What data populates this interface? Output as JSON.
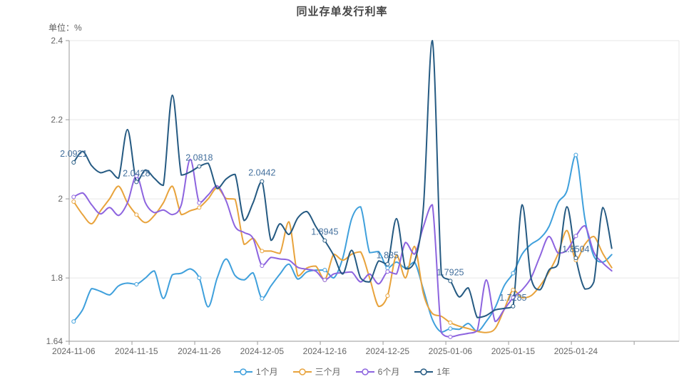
{
  "page": {
    "title": "同业存单发行利率",
    "unit_label": "单位：%"
  },
  "chart_data": {
    "type": "line",
    "title": "同业存单发行利率",
    "unit_label": "单位：%",
    "grid": true,
    "legend_position": "bottom",
    "smooth": true,
    "ylim": [
      1.64,
      2.4
    ],
    "y_ticks": [
      1.64,
      1.8,
      2.0,
      2.2,
      2.4
    ],
    "y_tick_labels": [
      "1.64",
      "1.8",
      "2",
      "2.2",
      "2.4"
    ],
    "x_labels": [
      "2024-11-06",
      "2024-11-15",
      "2024-11-26",
      "2024-12-05",
      "2024-12-16",
      "2024-12-25",
      "2025-01-06",
      "2025-01-15",
      "2025-01-24"
    ],
    "x_label_indices": [
      0,
      7,
      14,
      21,
      28,
      35,
      42,
      49,
      56
    ],
    "marker_indices": [
      0,
      7,
      14,
      21,
      28,
      35,
      42,
      49,
      56
    ],
    "n_points": 61,
    "n_categories": 68,
    "annotated_series": "1年",
    "annotation_labels": [
      "2.0921",
      "2.0428",
      "2.0818",
      "2.0442",
      "1.8945",
      "1.835",
      "1.7925",
      "1.7285",
      "1.8504"
    ],
    "annotation_color": "#44709D",
    "colors": {
      "axis": "#9a9a9a",
      "grid": "#e7e7e7",
      "tick_text": "#666666",
      "title_text": "#464646"
    },
    "series": [
      {
        "name": "1个月",
        "color": "#3FA0DC",
        "values": [
          1.69,
          1.72,
          1.773,
          1.766,
          1.757,
          1.78,
          1.787,
          1.784,
          1.8,
          1.818,
          1.748,
          1.808,
          1.812,
          1.823,
          1.8,
          1.727,
          1.8,
          1.848,
          1.806,
          1.795,
          1.813,
          1.748,
          1.78,
          1.81,
          1.835,
          1.797,
          1.815,
          1.82,
          1.82,
          1.8,
          1.85,
          1.95,
          1.98,
          1.864,
          1.867,
          1.825,
          1.84,
          1.825,
          1.84,
          1.77,
          1.695,
          1.663,
          1.672,
          1.67,
          1.685,
          1.665,
          1.69,
          1.725,
          1.78,
          1.812,
          1.86,
          1.885,
          1.9,
          1.93,
          1.99,
          2.02,
          2.111,
          1.95,
          1.855,
          1.84,
          1.859
        ]
      },
      {
        "name": "三个月",
        "color": "#E8A33C",
        "values": [
          1.993,
          1.96,
          1.937,
          1.97,
          2.0,
          2.032,
          1.99,
          1.96,
          1.94,
          1.958,
          1.99,
          2.032,
          1.96,
          1.97,
          1.978,
          2.0,
          2.028,
          2.001,
          1.999,
          1.885,
          1.9,
          1.868,
          1.868,
          1.862,
          1.942,
          1.805,
          1.825,
          1.83,
          1.795,
          1.86,
          1.845,
          1.86,
          1.866,
          1.8,
          1.728,
          1.755,
          1.858,
          1.8,
          1.88,
          1.76,
          1.71,
          1.703,
          1.687,
          1.678,
          1.672,
          1.665,
          1.662,
          1.672,
          1.72,
          1.77,
          1.75,
          1.755,
          1.78,
          1.815,
          1.86,
          1.92,
          1.845,
          1.885,
          1.905,
          1.862,
          1.826
        ]
      },
      {
        "name": "6个月",
        "color": "#8D64DF",
        "values": [
          2.005,
          2.015,
          1.985,
          1.962,
          1.978,
          1.958,
          1.99,
          2.058,
          1.99,
          1.965,
          1.972,
          1.96,
          1.985,
          2.1,
          1.99,
          2.01,
          2.033,
          1.995,
          1.93,
          1.915,
          1.9,
          1.831,
          1.852,
          1.848,
          1.845,
          1.827,
          1.822,
          1.817,
          1.795,
          1.81,
          1.813,
          1.815,
          1.79,
          1.81,
          1.785,
          1.816,
          1.81,
          1.89,
          1.86,
          1.93,
          1.985,
          1.662,
          1.651,
          1.656,
          1.66,
          1.667,
          1.795,
          1.69,
          1.72,
          1.75,
          1.77,
          1.8,
          1.855,
          1.905,
          1.863,
          1.87,
          1.906,
          1.932,
          1.865,
          1.838,
          1.818
        ]
      },
      {
        "name": "1年",
        "color": "#255A82",
        "values": [
          2.0921,
          2.12,
          2.084,
          2.066,
          2.072,
          2.052,
          2.175,
          2.0428,
          2.073,
          2.052,
          2.034,
          2.262,
          2.06,
          2.068,
          2.0818,
          2.09,
          2.026,
          2.05,
          2.062,
          1.945,
          1.99,
          2.0442,
          1.895,
          1.937,
          1.91,
          1.952,
          1.968,
          1.93,
          1.8945,
          1.857,
          1.81,
          1.87,
          1.8,
          1.79,
          1.843,
          1.835,
          1.95,
          1.823,
          1.84,
          1.98,
          2.4,
          1.81,
          1.7925,
          1.752,
          1.775,
          1.7,
          1.705,
          1.719,
          1.723,
          1.7285,
          1.985,
          1.8,
          1.77,
          1.82,
          1.835,
          1.98,
          1.8504,
          1.772,
          1.79,
          1.978,
          1.875
        ]
      }
    ]
  }
}
